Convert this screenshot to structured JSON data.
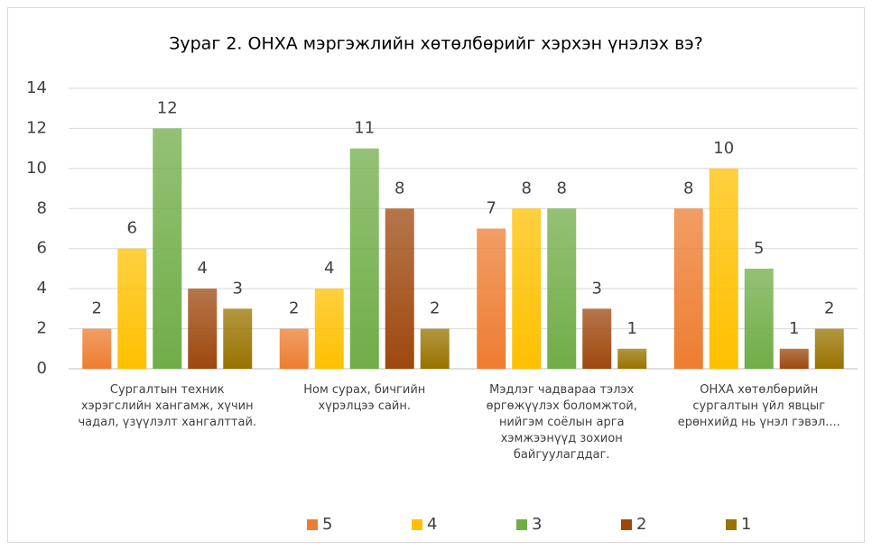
{
  "chart_data": {
    "type": "bar",
    "title": "Зураг 2. ОНХА мэргэжлийн хөтөлбөрийг хэрхэн үнэлэх вэ?",
    "categories": [
      "Сургалтын техник хэрэгслийн хангамж, хүчин чадал, үзүүлэлт хангалттай.",
      "Ном сурах, бичгийн хүрэлцээ сайн.",
      "Мэдлэг чадвараа тэлэх өргөжүүлэх боломжтой, нийгэм соёлын арга хэмжээнүүд зохион байгуулагддаг.",
      "ОНХА хөтөлбөрийн сургалтын үйл явцыг ерөнхийд нь үнэл гэвэл...."
    ],
    "series": [
      {
        "name": "5",
        "color": "#ed7d31",
        "values": [
          2,
          2,
          7,
          8
        ]
      },
      {
        "name": "4",
        "color": "#ffc000",
        "values": [
          6,
          4,
          8,
          10
        ]
      },
      {
        "name": "3",
        "color": "#70ad47",
        "values": [
          12,
          11,
          8,
          5
        ]
      },
      {
        "name": "2",
        "color": "#9e480e",
        "values": [
          4,
          8,
          3,
          1
        ]
      },
      {
        "name": "1",
        "color": "#997300",
        "values": [
          3,
          2,
          1,
          2
        ]
      }
    ],
    "ylim": [
      0,
      14
    ],
    "yticks": [
      0,
      2,
      4,
      6,
      8,
      10,
      12,
      14
    ],
    "grid": true,
    "legend": "bottom"
  }
}
